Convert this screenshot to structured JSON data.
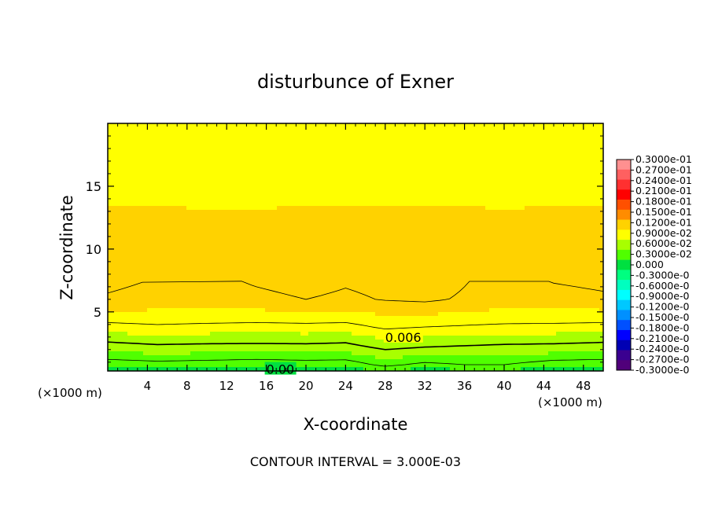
{
  "chart_data": {
    "type": "contour",
    "title": "disturbunce of Exner",
    "xlabel": "X-coordinate",
    "ylabel": "Z-coordinate",
    "x_unit_left": "(×1000 m)",
    "x_unit_right": "(×1000 m)",
    "footer": "CONTOUR INTERVAL = 3.000E-03",
    "xlim": [
      0,
      50
    ],
    "ylim": [
      0.3,
      20
    ],
    "x_ticks": [
      4,
      8,
      12,
      16,
      20,
      24,
      28,
      32,
      36,
      40,
      44,
      48
    ],
    "y_ticks": [
      5,
      10,
      15
    ],
    "contour_interval": 0.003,
    "x": [
      0,
      5,
      10,
      15,
      20,
      24,
      28,
      32,
      36,
      40,
      45,
      50
    ],
    "z": [
      0.3,
      0.8,
      1.5,
      2.2,
      3.0,
      3.8,
      4.5,
      6.0,
      7.5,
      9.0,
      11.0,
      13.0,
      15.0,
      17.5,
      20.0
    ],
    "values": [
      [
        0.0005,
        0.0005,
        0.0005,
        0.0005,
        0.0005,
        0.0005,
        0.0015,
        0.0005,
        0.0012,
        0.0012,
        0.0005,
        0.0005
      ],
      [
        0.0018,
        0.0022,
        0.002,
        0.0018,
        0.002,
        0.002,
        0.0035,
        0.0025,
        0.003,
        0.003,
        0.002,
        0.0018
      ],
      [
        0.0038,
        0.0042,
        0.004,
        0.0038,
        0.004,
        0.0038,
        0.005,
        0.0045,
        0.0045,
        0.0045,
        0.004,
        0.0038
      ],
      [
        0.0052,
        0.0056,
        0.0055,
        0.0055,
        0.0055,
        0.0054,
        0.0064,
        0.006,
        0.0058,
        0.0056,
        0.0055,
        0.0053
      ],
      [
        0.0068,
        0.0072,
        0.007,
        0.0069,
        0.007,
        0.0068,
        0.0078,
        0.0075,
        0.0073,
        0.0071,
        0.007,
        0.0068
      ],
      [
        0.0084,
        0.0087,
        0.0085,
        0.0084,
        0.0085,
        0.0084,
        0.0093,
        0.009,
        0.0088,
        0.0086,
        0.0085,
        0.0084
      ],
      [
        0.0096,
        0.0098,
        0.0097,
        0.0096,
        0.0097,
        0.0096,
        0.0102,
        0.0101,
        0.0099,
        0.0097,
        0.0097,
        0.0096
      ],
      [
        0.0118,
        0.0114,
        0.0112,
        0.0116,
        0.012,
        0.0117,
        0.0121,
        0.0123,
        0.0118,
        0.0113,
        0.0114,
        0.0117
      ],
      [
        0.0124,
        0.0119,
        0.0116,
        0.0122,
        0.0126,
        0.0122,
        0.0125,
        0.0128,
        0.0121,
        0.0114,
        0.0121,
        0.0124
      ],
      [
        0.0117,
        0.0115,
        0.0113,
        0.0115,
        0.0119,
        0.0117,
        0.0117,
        0.0121,
        0.0116,
        0.0111,
        0.0115,
        0.0116
      ],
      [
        0.0112,
        0.0111,
        0.011,
        0.011,
        0.0112,
        0.0112,
        0.0111,
        0.0113,
        0.0111,
        0.0109,
        0.0111,
        0.0112
      ],
      [
        0.0107,
        0.0107,
        0.0106,
        0.0106,
        0.0107,
        0.0107,
        0.0107,
        0.0107,
        0.0107,
        0.0106,
        0.0107,
        0.0107
      ],
      [
        0.0096,
        0.0096,
        0.0096,
        0.0096,
        0.0096,
        0.0096,
        0.0096,
        0.0096,
        0.0096,
        0.0096,
        0.0096,
        0.0096
      ],
      [
        0.0084,
        0.0084,
        0.0084,
        0.0084,
        0.0084,
        0.0084,
        0.0084,
        0.0084,
        0.0084,
        0.0084,
        0.0084,
        0.0084
      ],
      [
        0.0078,
        0.0078,
        0.0078,
        0.0078,
        0.0078,
        0.0078,
        0.0078,
        0.0078,
        0.0078,
        0.0078,
        0.0078,
        0.0078
      ]
    ],
    "contour_labels": [
      "0.006",
      "0.00"
    ],
    "colorbar": {
      "labels": [
        "0.3000e-01",
        "0.2700e-01",
        "0.2400e-01",
        "0.2100e-01",
        "0.1800e-01",
        "0.1500e-01",
        "0.1200e-01",
        "0.9000e-02",
        "0.6000e-02",
        "0.3000e-02",
        "0.000",
        "-0.3000e-0",
        "-0.6000e-0",
        "-0.9000e-0",
        "-0.1200e-0",
        "-0.1500e-0",
        "-0.1800e-0",
        "-0.2100e-0",
        "-0.2400e-0",
        "-0.2700e-0",
        "-0.3000e-0"
      ],
      "levels": [
        0.03,
        0.027,
        0.024,
        0.021,
        0.018,
        0.015,
        0.012,
        0.009,
        0.006,
        0.003,
        0.0,
        -0.003,
        -0.006,
        -0.009,
        -0.012,
        -0.015,
        -0.018,
        -0.021,
        -0.024,
        -0.027,
        -0.03
      ],
      "colors": [
        "#ff9090",
        "#ff6060",
        "#ff3030",
        "#ff0000",
        "#ff5000",
        "#ff8c00",
        "#ffd200",
        "#ffff00",
        "#a8ff00",
        "#50ff00",
        "#00e040",
        "#00ff80",
        "#00ffbf",
        "#00ffff",
        "#00c8ff",
        "#0090ff",
        "#0050ff",
        "#0000ff",
        "#0000b4",
        "#3a0090",
        "#50007a"
      ]
    }
  }
}
